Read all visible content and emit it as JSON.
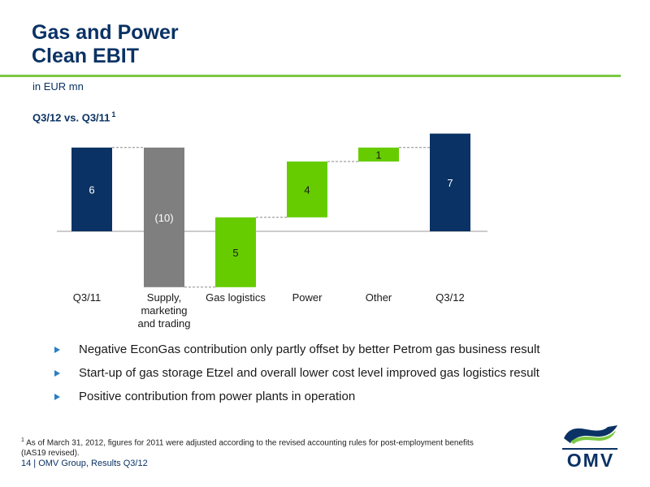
{
  "title_line1": "Gas and Power",
  "title_line2": "Clean EBIT",
  "unit": "in EUR mn",
  "subtitle": "Q3/12 vs. Q3/11",
  "subtitle_note": "1",
  "chart_data": {
    "type": "bar",
    "subtype": "waterfall",
    "categories": [
      "Q3/11",
      "Supply,\nmarketing\nand trading",
      "Gas logistics",
      "Power",
      "Other",
      "Q3/12"
    ],
    "values": [
      6,
      -10,
      5,
      4,
      1,
      7
    ],
    "data_labels": [
      "6",
      "(10)",
      "5",
      "4",
      "1",
      "7"
    ],
    "kinds": [
      "total",
      "delta",
      "delta",
      "delta",
      "delta",
      "total"
    ],
    "colors": {
      "total": "#0a3264",
      "negative": "#7f7f7f",
      "positive": "#66cc00"
    }
  },
  "bullets": [
    "Negative EconGas contribution only partly offset by better Petrom gas business result",
    "Start-up of gas storage Etzel and overall lower cost level improved gas logistics result",
    "Positive contribution from power plants in operation"
  ],
  "footnote_marker": "1",
  "footnote": "As of March 31, 2012, figures for 2011 were adjusted according to the revised accounting rules for post-employment benefits (IAS19 revised).",
  "footer": "14 | OMV Group, Results Q3/12",
  "logo_text": "OMV",
  "icons": {
    "bullet": "triangle-arrow-icon"
  }
}
